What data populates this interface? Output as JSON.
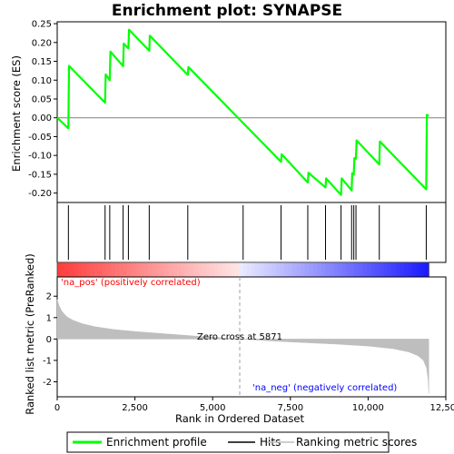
{
  "chart_data": {
    "type": "line",
    "title": "Enrichment plot: SYNAPSE",
    "xlabel": "Rank in Ordered Dataset",
    "xlim": [
      0,
      12500
    ],
    "xticks": [
      0,
      2500,
      5000,
      7500,
      10000,
      12500
    ],
    "xtick_labels": [
      "0",
      "2,500",
      "5,000",
      "7,500",
      "10,000",
      "12,500"
    ],
    "n_genes": 11950,
    "es_panel": {
      "ylabel": "Enrichment score (ES)",
      "ylim": [
        -0.225,
        0.255
      ],
      "yticks": [
        -0.2,
        -0.15,
        -0.1,
        -0.05,
        0.0,
        0.05,
        0.1,
        0.15,
        0.2,
        0.25
      ],
      "ytick_labels": [
        "-0.20",
        "-0.15",
        "-0.10",
        "-0.05",
        "0.00",
        "0.05",
        "0.10",
        "0.15",
        "0.20",
        "0.25"
      ],
      "series": [
        {
          "name": "Enrichment profile",
          "color": "#00ff00",
          "x": [
            0,
            360,
            380,
            1540,
            1560,
            1690,
            1710,
            2120,
            2140,
            2290,
            2310,
            2960,
            2980,
            4200,
            4220,
            7200,
            7220,
            8060,
            8080,
            8630,
            8650,
            9130,
            9150,
            9470,
            9490,
            9540,
            9560,
            9610,
            9630,
            10360,
            10380,
            11870,
            11890,
            11950
          ],
          "y": [
            0.0,
            -0.028,
            0.138,
            0.04,
            0.115,
            0.1,
            0.176,
            0.137,
            0.197,
            0.184,
            0.234,
            0.178,
            0.218,
            0.114,
            0.135,
            -0.117,
            -0.097,
            -0.172,
            -0.146,
            -0.185,
            -0.161,
            -0.205,
            -0.161,
            -0.193,
            -0.147,
            -0.151,
            -0.107,
            -0.109,
            -0.06,
            -0.124,
            -0.063,
            -0.19,
            0.008,
            0.005
          ]
        }
      ]
    },
    "hits": {
      "name": "Hits",
      "positions": [
        360,
        1540,
        1690,
        2120,
        2290,
        2960,
        4200,
        5980,
        7200,
        8060,
        8630,
        9130,
        9470,
        9540,
        9610,
        10360,
        11870
      ]
    },
    "rank_metric": {
      "name": "Ranking metric scores",
      "ylabel": "Ranked list metric (PreRanked)",
      "ylim": [
        -2.7,
        2.9
      ],
      "yticks": [
        -2,
        -1,
        0,
        1,
        2
      ],
      "ytick_labels": [
        "-2",
        "-1",
        "0",
        "1",
        "2"
      ],
      "x": [
        0,
        60,
        150,
        300,
        500,
        800,
        1200,
        1800,
        2500,
        3500,
        4500,
        5871,
        7000,
        8000,
        9000,
        10000,
        10800,
        11300,
        11600,
        11780,
        11880,
        11930,
        11950
      ],
      "y": [
        1.85,
        1.55,
        1.3,
        1.05,
        0.88,
        0.72,
        0.58,
        0.45,
        0.35,
        0.24,
        0.13,
        0.0,
        -0.1,
        -0.17,
        -0.24,
        -0.33,
        -0.45,
        -0.6,
        -0.78,
        -1.0,
        -1.35,
        -1.9,
        -2.55
      ],
      "fill": "#bebebe",
      "zero_cross_label": "Zero cross at 5871",
      "zero_cross": 5871,
      "pos_label": "'na_pos' (positively correlated)",
      "neg_label": "'na_neg' (negatively correlated)",
      "pos_color": "#ff0000",
      "neg_color": "#0000ff"
    },
    "legend": {
      "placement": "bottom",
      "items": [
        "Enrichment profile",
        "Hits",
        "Ranking metric scores"
      ]
    }
  }
}
